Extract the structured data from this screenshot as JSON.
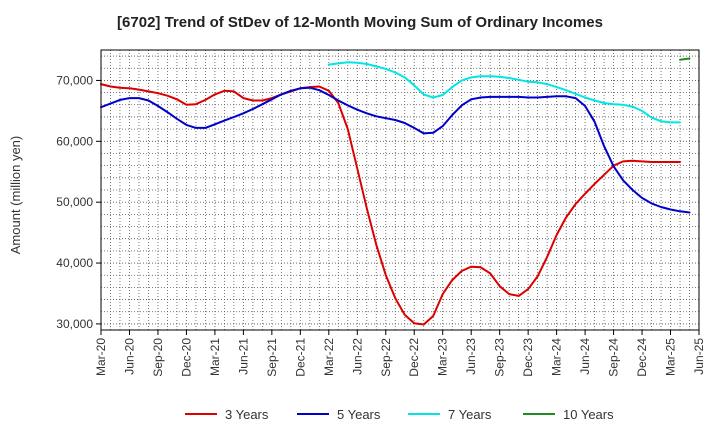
{
  "chart_data": {
    "type": "line",
    "title": "[6702]  Trend of StDev of 12-Month Moving Sum of Ordinary Incomes",
    "xlabel": "",
    "ylabel": "Amount (million yen)",
    "ylim": [
      29000,
      75000
    ],
    "yticks": [
      30000,
      40000,
      50000,
      60000,
      70000
    ],
    "ytick_labels": [
      "30,000",
      "40,000",
      "50,000",
      "60,000",
      "70,000"
    ],
    "x_range": [
      0,
      63
    ],
    "xtick_positions": [
      0,
      3,
      6,
      9,
      12,
      15,
      18,
      21,
      24,
      27,
      30,
      33,
      36,
      39,
      42,
      45,
      48,
      51,
      54,
      57,
      60,
      63
    ],
    "xtick_labels": [
      "Mar-20",
      "Jun-20",
      "Sep-20",
      "Dec-20",
      "Mar-21",
      "Jun-21",
      "Sep-21",
      "Dec-21",
      "Mar-22",
      "Jun-22",
      "Sep-22",
      "Dec-22",
      "Mar-23",
      "Jun-23",
      "Sep-23",
      "Dec-23",
      "Mar-24",
      "Jun-24",
      "Sep-24",
      "Dec-24",
      "Mar-25",
      "Jun-25"
    ],
    "grid": true,
    "legend_position": "bottom",
    "series": [
      {
        "name": "3 Years",
        "color": "#dd0000",
        "x_start": 0,
        "values": [
          69400,
          69000,
          68800,
          68700,
          68500,
          68200,
          67900,
          67500,
          66900,
          66000,
          66100,
          66800,
          67700,
          68300,
          68200,
          67100,
          66700,
          66700,
          67100,
          67700,
          68200,
          68700,
          68900,
          69000,
          68300,
          66300,
          62000,
          55500,
          49000,
          43000,
          38000,
          34200,
          31500,
          30100,
          29900,
          31300,
          34900,
          37200,
          38700,
          39400,
          39300,
          38300,
          36200,
          34900,
          34600,
          35700,
          37800,
          41000,
          44600,
          47500,
          49700,
          51400,
          53000,
          54500,
          56000,
          56700,
          56800,
          56700,
          56600,
          56600,
          56600,
          56600
        ]
      },
      {
        "name": "5 Years",
        "color": "#0000cc",
        "x_start": 0,
        "values": [
          65600,
          66200,
          66800,
          67100,
          67100,
          66700,
          65800,
          64800,
          63700,
          62700,
          62200,
          62200,
          62800,
          63400,
          64000,
          64600,
          65300,
          66100,
          66900,
          67700,
          68300,
          68700,
          68800,
          68400,
          67600,
          66700,
          65900,
          65200,
          64600,
          64100,
          63800,
          63500,
          63000,
          62200,
          61300,
          61400,
          62500,
          64300,
          65900,
          66900,
          67200,
          67300,
          67300,
          67300,
          67300,
          67200,
          67200,
          67300,
          67400,
          67400,
          67100,
          65800,
          63200,
          59200,
          55900,
          53600,
          52000,
          50700,
          49800,
          49200,
          48800,
          48500,
          48300
        ]
      },
      {
        "name": "7 Years",
        "color": "#00e5e5",
        "x_start": 24,
        "values": [
          72600,
          72800,
          73000,
          72900,
          72700,
          72300,
          71900,
          71300,
          70500,
          69200,
          67700,
          67200,
          67600,
          68900,
          70000,
          70500,
          70700,
          70700,
          70600,
          70400,
          70100,
          69800,
          69700,
          69400,
          68900,
          68400,
          67800,
          67200,
          66700,
          66300,
          66100,
          66000,
          65700,
          65000,
          63900,
          63300,
          63100,
          63100
        ]
      },
      {
        "name": "10 Years",
        "color": "#228b22",
        "x_start": 61,
        "values": [
          73400,
          73600
        ]
      }
    ]
  }
}
